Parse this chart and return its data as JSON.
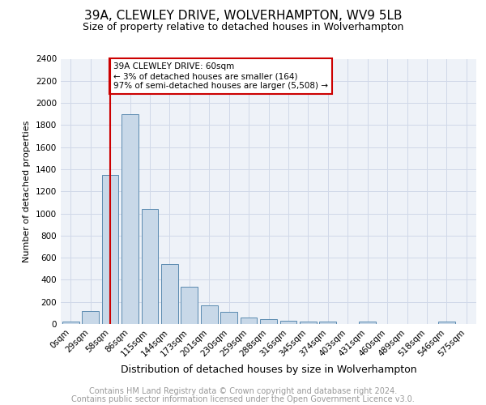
{
  "title": "39A, CLEWLEY DRIVE, WOLVERHAMPTON, WV9 5LB",
  "subtitle": "Size of property relative to detached houses in Wolverhampton",
  "xlabel": "Distribution of detached houses by size in Wolverhampton",
  "ylabel": "Number of detached properties",
  "bar_color": "#c8d8e8",
  "bar_edge_color": "#5a8ab0",
  "categories": [
    "0sqm",
    "29sqm",
    "58sqm",
    "86sqm",
    "115sqm",
    "144sqm",
    "173sqm",
    "201sqm",
    "230sqm",
    "259sqm",
    "288sqm",
    "316sqm",
    "345sqm",
    "374sqm",
    "403sqm",
    "431sqm",
    "460sqm",
    "489sqm",
    "518sqm",
    "546sqm",
    "575sqm"
  ],
  "values": [
    20,
    120,
    1350,
    1900,
    1040,
    540,
    340,
    170,
    110,
    60,
    45,
    30,
    25,
    20,
    0,
    20,
    0,
    0,
    0,
    20,
    0
  ],
  "vline_index": 2,
  "vline_color": "#cc0000",
  "annotation_text": "39A CLEWLEY DRIVE: 60sqm\n← 3% of detached houses are smaller (164)\n97% of semi-detached houses are larger (5,508) →",
  "annotation_box_color": "#cc0000",
  "ylim": [
    0,
    2400
  ],
  "yticks": [
    0,
    200,
    400,
    600,
    800,
    1000,
    1200,
    1400,
    1600,
    1800,
    2000,
    2200,
    2400
  ],
  "grid_color": "#d0d8e8",
  "background_color": "#eef2f8",
  "footer_line1": "Contains HM Land Registry data © Crown copyright and database right 2024.",
  "footer_line2": "Contains public sector information licensed under the Open Government Licence v3.0.",
  "title_fontsize": 11,
  "subtitle_fontsize": 9,
  "xlabel_fontsize": 9,
  "ylabel_fontsize": 8,
  "tick_fontsize": 7.5,
  "footer_fontsize": 7
}
